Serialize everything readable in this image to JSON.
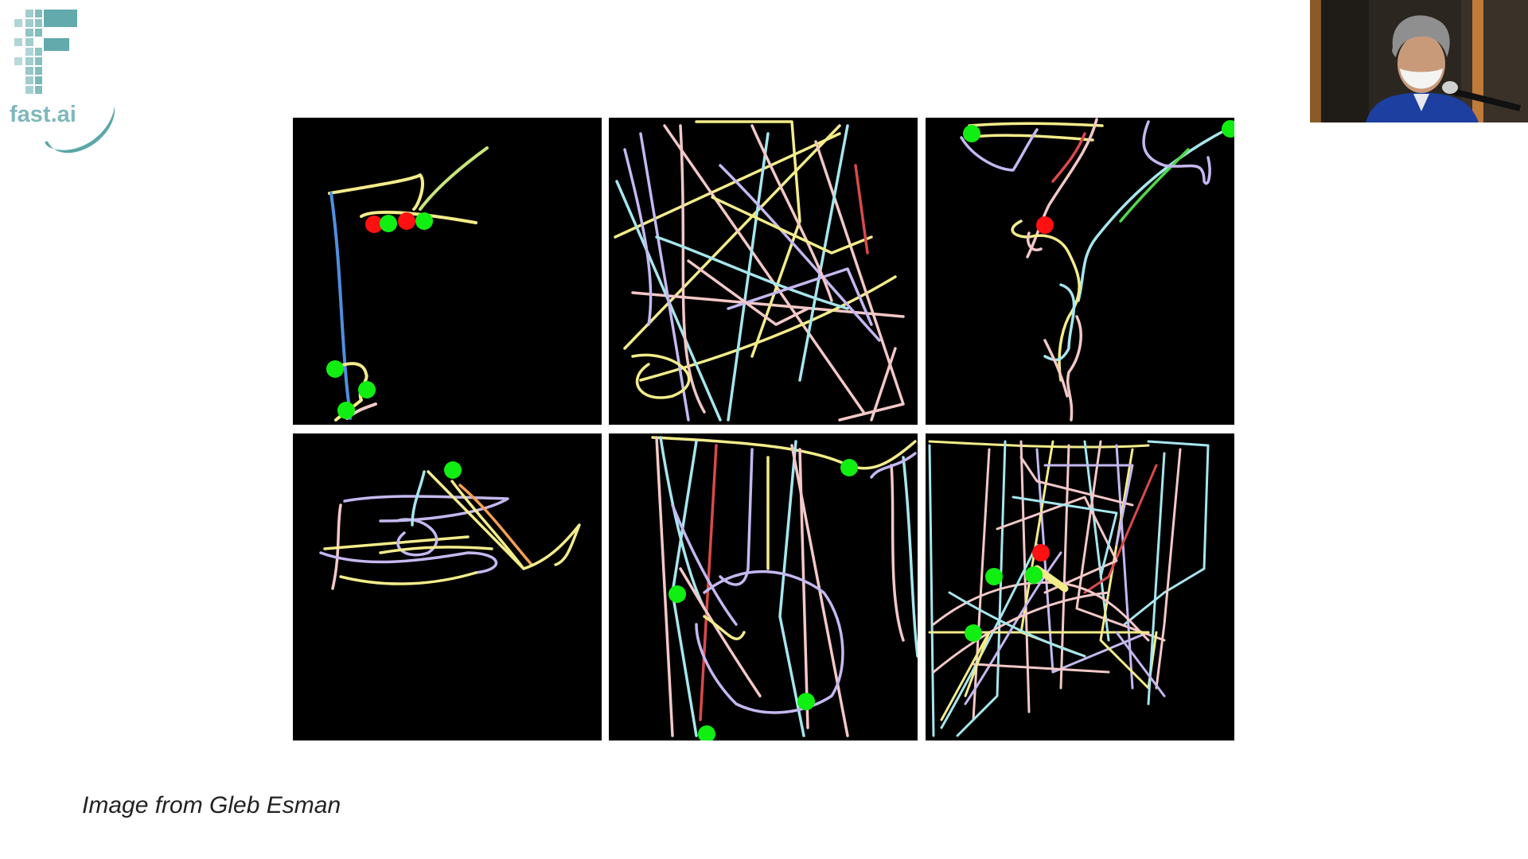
{
  "logo": {
    "text": "fast.ai",
    "icon": "fastai-logo-icon",
    "color": "#5aa6a8"
  },
  "webcam": {
    "icon": "presenter-video-icon"
  },
  "figure": {
    "panels": 6,
    "colors": {
      "background": "#000000",
      "start_marker": "#11ee11",
      "end_marker": "#ff1111",
      "trail_colors": [
        "#f5b8b8",
        "#a6e6ee",
        "#c5b8f0",
        "#f3ec8a",
        "#f4c8c8",
        "#d84a4a",
        "#4f8fe0",
        "#50d84a"
      ]
    }
  },
  "caption": {
    "text": "Image from Gleb Esman"
  }
}
